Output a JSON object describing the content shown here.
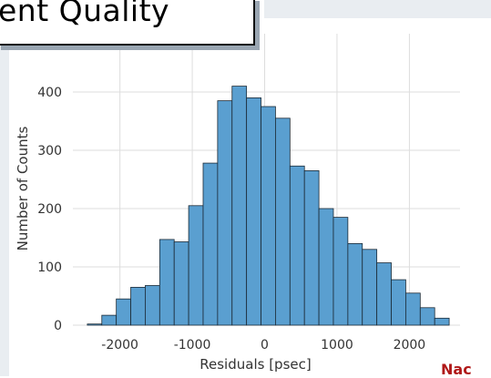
{
  "slide": {
    "title": "ent Quality",
    "footer_fragment": "Nac"
  },
  "colors": {
    "bar_fill": "#5a9fd0",
    "bar_edge": "#1b2a36",
    "grid": "#dddddd",
    "axis_text": "#333333",
    "footer": "#b01818"
  },
  "chart_data": {
    "type": "bar",
    "xlabel": "Residuals [psec]",
    "ylabel": "Number of Counts",
    "xlim": [
      -2650,
      2700
    ],
    "ylim": [
      0,
      500
    ],
    "grid": true,
    "xticks": [
      -2000,
      -1000,
      0,
      1000,
      2000
    ],
    "xtick_labels": [
      "-2000",
      "-1000",
      "0",
      "1000",
      "2000"
    ],
    "yticks": [
      0,
      100,
      200,
      300,
      400
    ],
    "ytick_labels": [
      "0",
      "100",
      "200",
      "300",
      "400"
    ],
    "bin_edges": [
      -2450,
      -2250,
      -2050,
      -1850,
      -1650,
      -1450,
      -1250,
      -1050,
      -850,
      -650,
      -450,
      -250,
      -50,
      150,
      350,
      550,
      750,
      950,
      1150,
      1350,
      1550,
      1750,
      1950,
      2150,
      2350
    ],
    "values": [
      2,
      17,
      45,
      65,
      68,
      147,
      143,
      205,
      278,
      385,
      410,
      390,
      375,
      355,
      273,
      265,
      200,
      185,
      140,
      130,
      107,
      78,
      55,
      30,
      12
    ]
  }
}
